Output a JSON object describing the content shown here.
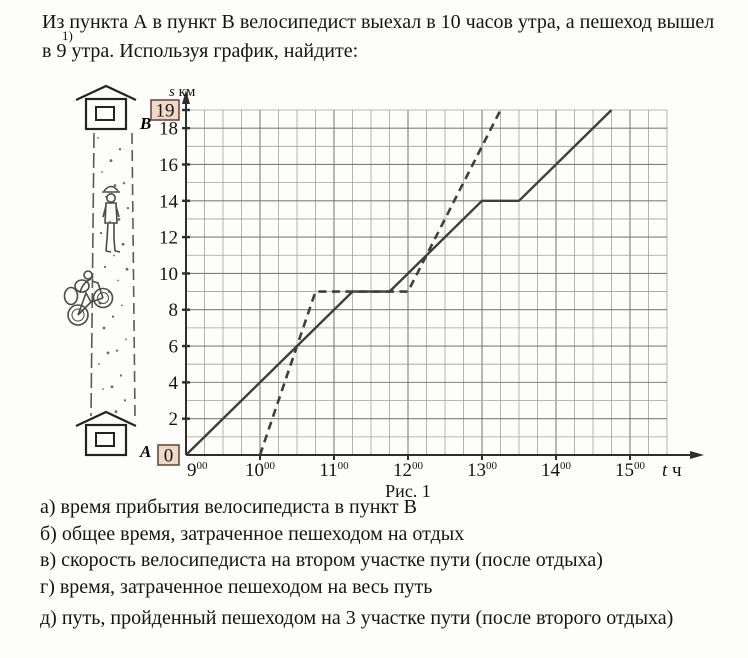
{
  "problem": {
    "number": "1)",
    "statement": "Из пункта А в пункт В велосипедист выехал в 10 часов утра, а пешеход вышел в 9 утра. Используя график, найдите:"
  },
  "illustration": {
    "point_top_label": "B",
    "point_bottom_label": "A"
  },
  "chart_data": {
    "type": "line",
    "caption": "Рис. 1",
    "ylabel_var": "s",
    "ylabel_unit": "км",
    "xlabel_var": "t",
    "xlabel_unit": "ч",
    "x_axis": {
      "start_hour": 9,
      "grid_end_hour": 15.5,
      "tick_hours": [
        9,
        10,
        11,
        12,
        13,
        14,
        15
      ],
      "tick_superscript": "00",
      "minor_step_minutes": 15
    },
    "y_axis": {
      "min": 0,
      "max": 19,
      "labeled_ticks": [
        18,
        16,
        14,
        12,
        10,
        8,
        6,
        4,
        2
      ],
      "boxed_labels": [
        19,
        0
      ],
      "minor_step_km": 1
    },
    "series": [
      {
        "name": "пешеход",
        "style": "solid",
        "departure": "9:00",
        "points_t_km": [
          [
            9,
            0
          ],
          [
            11.25,
            9
          ],
          [
            11.75,
            9
          ],
          [
            13,
            14
          ],
          [
            13.5,
            14
          ],
          [
            14.75,
            19
          ]
        ]
      },
      {
        "name": "велосипедист",
        "style": "dashed",
        "departure": "10:00",
        "points_t_km": [
          [
            10,
            0
          ],
          [
            10.75,
            9
          ],
          [
            12,
            9
          ],
          [
            13.25,
            19
          ]
        ]
      }
    ],
    "colors": {
      "line": "#3e3e3e",
      "grid_minor": "#a0a0a0",
      "grid_major": "#7e7e7e",
      "axis": "#2e2e2e",
      "box_fill": "#eed9c8",
      "box_border": "#6b4c3b",
      "sketch": "#4a4a4a"
    }
  },
  "questions": [
    {
      "label": "а)",
      "text": "время прибытия велосипедиста в пункт В"
    },
    {
      "label": "б)",
      "text": "общее время, затраченное пешеходом на отдых"
    },
    {
      "label": "в)",
      "text": "скорость велосипедиста на втором участке пути (после отдыха)"
    },
    {
      "label": "г)",
      "text": "время, затраченное пешеходом на весь путь"
    },
    {
      "label": "д)",
      "text": "путь, пройденный пешеходом на 3 участке пути (после второго отдыха)"
    }
  ]
}
